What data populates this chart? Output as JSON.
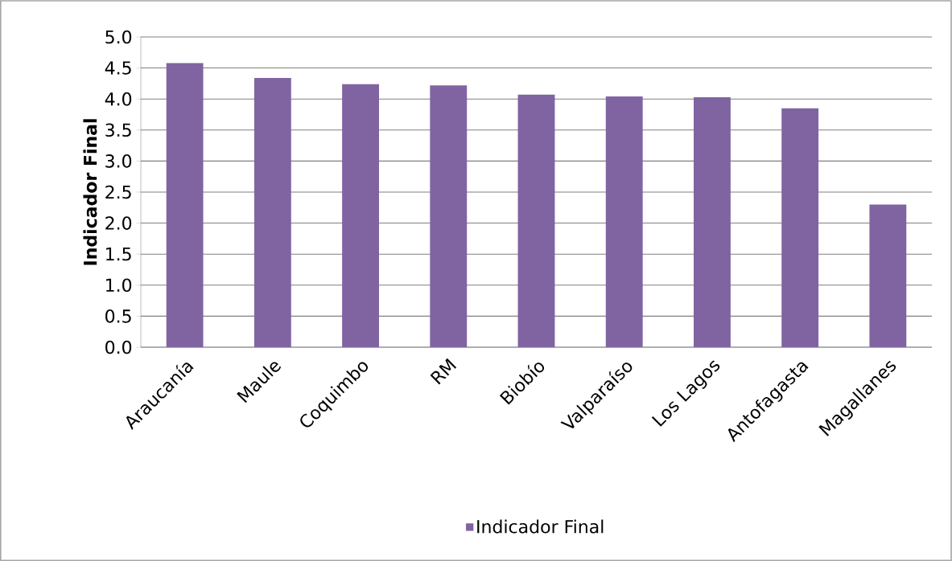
{
  "chart_data": {
    "type": "bar",
    "ylabel": "**Indicador Final**",
    "categories": [
      "Araucanía",
      "Maule",
      "Coquimbo",
      "RM",
      "Biobío",
      "Valparaíso",
      "Los Lagos",
      "Antofagasta",
      "Magallanes"
    ],
    "series": [
      {
        "name": "Indicador Final",
        "color": "#8064a2",
        "values": [
          4.58,
          4.34,
          4.24,
          4.22,
          4.07,
          4.04,
          4.03,
          3.85,
          2.3
        ]
      }
    ],
    "ylim": [
      0,
      5
    ],
    "yticks": [
      {
        "value": 0,
        "label": "0.0"
      },
      {
        "value": 0.5,
        "label": "0.5"
      },
      {
        "value": 1,
        "label": "1.0"
      },
      {
        "value": 1.5,
        "label": "1.5"
      },
      {
        "value": 2,
        "label": "2.0"
      },
      {
        "value": 2.5,
        "label": "2.5"
      },
      {
        "value": 3,
        "label": "3.0"
      },
      {
        "value": 3.5,
        "label": "3.5"
      },
      {
        "value": 4,
        "label": "4.0"
      },
      {
        "value": 4.5,
        "label": "4.5"
      },
      {
        "value": 5,
        "label": "5.0"
      }
    ],
    "grid": "y",
    "legend": "bottom"
  }
}
